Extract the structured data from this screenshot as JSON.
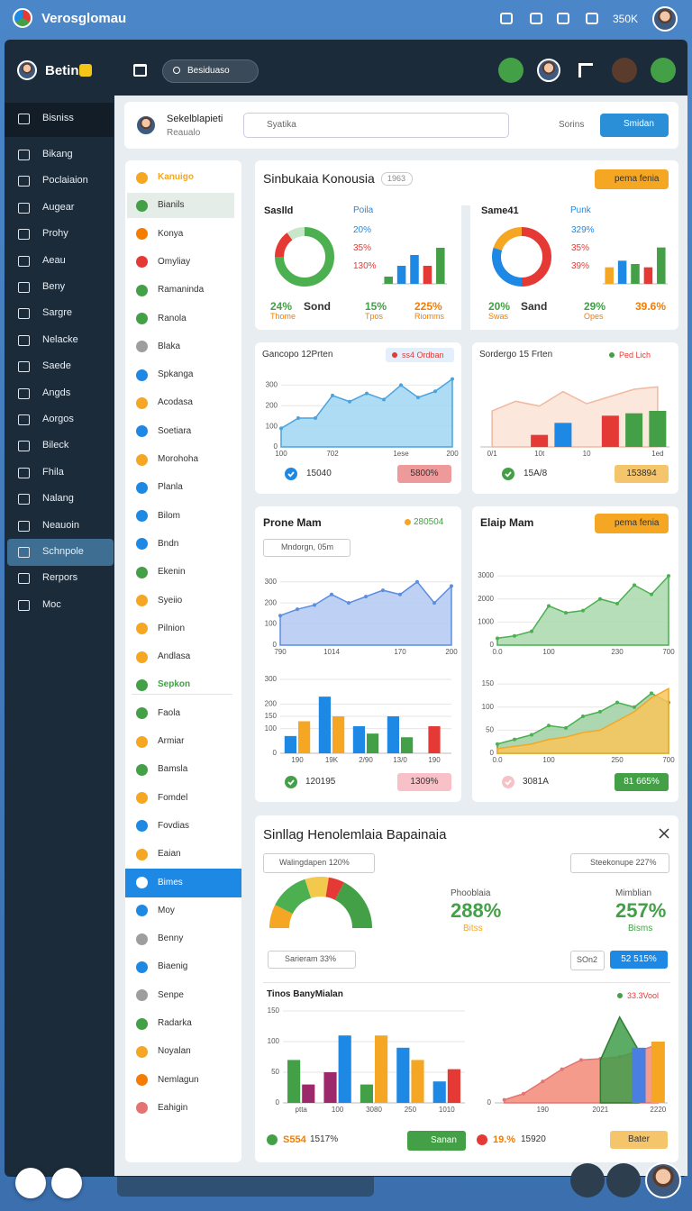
{
  "topbar": {
    "title": "Verosglomau",
    "count": "350K"
  },
  "brand": "Betin",
  "search": "Besiduaso",
  "sidebar": [
    {
      "label": "Bisniss",
      "state": "highlight"
    },
    {
      "label": "Bikang"
    },
    {
      "label": "Poclaiaion"
    },
    {
      "label": "Augear"
    },
    {
      "label": "Prohy"
    },
    {
      "label": "Aeau"
    },
    {
      "label": "Beny"
    },
    {
      "label": "Sargre"
    },
    {
      "label": "Nelacke"
    },
    {
      "label": "Saede"
    },
    {
      "label": "Angds"
    },
    {
      "label": "Aorgos"
    },
    {
      "label": "Bileck"
    },
    {
      "label": "Fhila"
    },
    {
      "label": "Nalang"
    },
    {
      "label": "Neauoin"
    },
    {
      "label": "Schnpole",
      "state": "selected"
    },
    {
      "label": "Rerpors"
    },
    {
      "label": "Moc"
    }
  ],
  "header": {
    "name": "Sekelblapieti",
    "role": "Reaualo",
    "select": "Syatika",
    "link": "Sorins",
    "button": "Smidan"
  },
  "list": [
    {
      "label": "Kanuigo",
      "color": "#f5a623",
      "state": "heading"
    },
    {
      "label": "Bianils",
      "color": "#43a047",
      "state": "highlight"
    },
    {
      "label": "Konya",
      "color": "#f57c00"
    },
    {
      "label": "Omyliay",
      "color": "#e53935"
    },
    {
      "label": "Ramaninda",
      "color": "#43a047"
    },
    {
      "label": "Ranola",
      "color": "#43a047"
    },
    {
      "label": "Blaka",
      "color": "#9e9e9e"
    },
    {
      "label": "Spkanga",
      "color": "#1e88e5"
    },
    {
      "label": "Acodasa",
      "color": "#f5a623"
    },
    {
      "label": "Soetiara",
      "color": "#1e88e5"
    },
    {
      "label": "Morohoha",
      "color": "#f5a623"
    },
    {
      "label": "Planla",
      "color": "#1e88e5"
    },
    {
      "label": "Bilom",
      "color": "#1e88e5"
    },
    {
      "label": "Bndn",
      "color": "#1e88e5"
    },
    {
      "label": "Ekenin",
      "color": "#43a047"
    },
    {
      "label": "Syeiio",
      "color": "#f5a623"
    },
    {
      "label": "Pilnion",
      "color": "#f5a623"
    },
    {
      "label": "Andlasa",
      "color": "#f5a623"
    },
    {
      "label": "Sepkon",
      "color": "#43a047",
      "state": "heading"
    },
    {
      "label": "Faola",
      "color": "#43a047"
    },
    {
      "label": "Armiar",
      "color": "#f5a623"
    },
    {
      "label": "Bamsla",
      "color": "#43a047"
    },
    {
      "label": "Fomdel",
      "color": "#f5a623"
    },
    {
      "label": "Fovdias",
      "color": "#1e88e5"
    },
    {
      "label": "Eaian",
      "color": "#f5a623"
    },
    {
      "label": "Bimes",
      "color": "#ffffff",
      "state": "selected"
    },
    {
      "label": "Moy",
      "color": "#1e88e5"
    },
    {
      "label": "Benny",
      "color": "#9e9e9e"
    },
    {
      "label": "Biaenig",
      "color": "#1e88e5"
    },
    {
      "label": "Senpe",
      "color": "#9e9e9e"
    },
    {
      "label": "Radarka",
      "color": "#43a047"
    },
    {
      "label": "Noyalan",
      "color": "#f5a623"
    },
    {
      "label": "Nemlagun",
      "color": "#f57c00"
    },
    {
      "label": "Eahigin",
      "color": "#e57373"
    }
  ],
  "summary": {
    "title": "Sinbukaia Konousia",
    "badge": "1963",
    "button": "pema fenia",
    "panels": [
      {
        "label": "Saslld",
        "legend": "Poila",
        "stats": [
          "20%",
          "35%",
          "130%"
        ],
        "donut": {
          "type": "donut",
          "values": [
            75,
            15,
            10
          ],
          "colors": [
            "#4caf50",
            "#e53935",
            "#c8e6c9"
          ]
        },
        "bars": {
          "type": "bar",
          "ylim": [
            0,
            55
          ],
          "series": [
            {
              "values": [
                10,
                25,
                40,
                25,
                50
              ],
              "colors": [
                "#43a047",
                "#1e88e5",
                "#1e88e5",
                "#e53935",
                "#43a047"
              ]
            }
          ]
        },
        "footer": [
          [
            "24%",
            "Thome"
          ],
          [
            "Sond"
          ],
          [
            "15%",
            "Tpos"
          ],
          [
            "225%",
            "Riomms"
          ]
        ]
      },
      {
        "label": "Same41",
        "legend": "Punk",
        "stats": [
          "329%",
          "35%",
          "39%"
        ],
        "donut": {
          "type": "donut",
          "values": [
            50,
            30,
            20
          ],
          "colors": [
            "#e53935",
            "#1e88e5",
            "#f5a623"
          ]
        },
        "bars": {
          "type": "bar",
          "ylim": [
            0,
            60
          ],
          "series": [
            {
              "values": [
                25,
                35,
                30,
                25,
                55
              ],
              "colors": [
                "#f5a623",
                "#1e88e5",
                "#43a047",
                "#e53935",
                "#43a047"
              ]
            }
          ]
        },
        "footer": [
          [
            "20%",
            "Swas"
          ],
          [
            "Sand"
          ],
          [
            "29%",
            "Opes"
          ],
          [
            "39.6%"
          ]
        ]
      }
    ]
  },
  "card_a": {
    "title": "Gancopo 12Prten",
    "legend": "ss4 Ordban",
    "footer": "15040",
    "pill": "5800%",
    "chart": {
      "type": "area",
      "ylim": [
        0,
        350
      ],
      "yticks": [
        0,
        100,
        200,
        300
      ],
      "categories": [
        "100",
        null,
        null,
        "702",
        null,
        null,
        null,
        "1ese",
        null,
        null,
        "200"
      ],
      "series": [
        {
          "kind": "area",
          "color": "#9fd6f2",
          "line": "#4aa3df",
          "dots": true,
          "values": [
            90,
            140,
            140,
            250,
            220,
            260,
            230,
            300,
            240,
            270,
            330
          ]
        }
      ]
    }
  },
  "card_b": {
    "title": "Sordergo 15 Frten",
    "legend": "Ped Lich",
    "footer": "15A/8",
    "pill": "153894",
    "chart": {
      "type": "combo",
      "ylim": [
        0,
        300
      ],
      "categories": [
        "0/1",
        null,
        "10t",
        null,
        "10",
        null,
        null,
        "1ed"
      ],
      "series": [
        {
          "kind": "area",
          "color": "#fbe3d6",
          "line": "#f0b9a0",
          "values": [
            150,
            190,
            170,
            230,
            180,
            210,
            240,
            250
          ]
        },
        {
          "kind": "bar",
          "color": "#e53935",
          "values": [
            null,
            null,
            50,
            null,
            null,
            130,
            null,
            null
          ]
        },
        {
          "kind": "bar",
          "color": "#1e88e5",
          "values": [
            null,
            null,
            null,
            100,
            null,
            null,
            null,
            null
          ]
        },
        {
          "kind": "bar",
          "color": "#43a047",
          "values": [
            null,
            null,
            null,
            null,
            null,
            null,
            140,
            150
          ]
        }
      ]
    }
  },
  "card_c": {
    "title": "Prone Mam",
    "badge": "280504",
    "search": "Mndorgn, 05m",
    "footer": "120195",
    "pill": "1309%",
    "chart_top": {
      "type": "area",
      "ylim": [
        0,
        350
      ],
      "yticks": [
        0,
        100,
        200,
        300
      ],
      "categories": [
        "790",
        null,
        null,
        "1014",
        null,
        null,
        null,
        "170",
        null,
        null,
        "200"
      ],
      "series": [
        {
          "kind": "area",
          "color": "#b3c9f2",
          "line": "#5b8de0",
          "dots": true,
          "values": [
            140,
            170,
            190,
            240,
            200,
            230,
            260,
            240,
            300,
            200,
            280
          ]
        }
      ]
    },
    "chart_bottom": {
      "type": "bar",
      "ylim": [
        0,
        300
      ],
      "yticks": [
        0,
        100,
        150,
        200,
        300
      ],
      "categories": [
        "190",
        "19K",
        "2/90",
        "13/0",
        "190"
      ],
      "series": [
        {
          "kind": "bar",
          "color": "#1e88e5",
          "values": [
            70,
            230,
            110,
            150,
            null
          ]
        },
        {
          "kind": "bar",
          "color": "#f5a623",
          "values": [
            130,
            150,
            null,
            null,
            null
          ]
        },
        {
          "kind": "bar",
          "color": "#43a047",
          "values": [
            null,
            null,
            80,
            65,
            null
          ]
        },
        {
          "kind": "bar",
          "color": "#e53935",
          "values": [
            null,
            null,
            null,
            null,
            110
          ]
        }
      ]
    }
  },
  "card_d": {
    "title": "Elaip Mam",
    "button": "pema fenia",
    "footer": "3081A",
    "pill": "81 665%",
    "chart_top": {
      "type": "area",
      "ylim": [
        0,
        3200
      ],
      "yticks": [
        0,
        1000,
        2000,
        3000
      ],
      "categories": [
        "0.0",
        null,
        null,
        "100",
        null,
        null,
        null,
        "230",
        null,
        null,
        "700"
      ],
      "series": [
        {
          "kind": "area",
          "color": "#a9d8ad",
          "line": "#4caf50",
          "dots": true,
          "values": [
            300,
            400,
            600,
            1700,
            1400,
            1500,
            2000,
            1800,
            2600,
            2200,
            3000
          ]
        }
      ]
    },
    "chart_bottom": {
      "type": "area",
      "ylim": [
        0,
        160
      ],
      "yticks": [
        0,
        50,
        100,
        150
      ],
      "categories": [
        "0.0",
        null,
        null,
        "100",
        null,
        null,
        null,
        "250",
        null,
        null,
        "700"
      ],
      "series": [
        {
          "kind": "area",
          "color": "#9fd0a3",
          "line": "#4caf50",
          "dots": true,
          "values": [
            20,
            30,
            40,
            60,
            55,
            80,
            90,
            110,
            100,
            130,
            110
          ]
        },
        {
          "kind": "area",
          "color": "#f9c55a",
          "line": "#f5a623",
          "values": [
            10,
            15,
            20,
            30,
            35,
            45,
            50,
            70,
            90,
            120,
            140
          ]
        }
      ]
    }
  },
  "report": {
    "title": "Sinllag Henolemlaia Bapainaia",
    "search_left": "Walingdapen 120%",
    "search_right": "Steekonupe 227%",
    "gauge": {
      "type": "half-donut",
      "values": [
        15,
        25,
        15,
        10,
        35
      ],
      "colors": [
        "#f5a623",
        "#4caf50",
        "#f2c94c",
        "#e53935",
        "#43a047"
      ]
    },
    "stats": [
      {
        "label": "Phooblaia",
        "value": "288%",
        "note": "Bitss"
      },
      {
        "label": "Mimblian",
        "value": "257%",
        "note": "Bisms"
      }
    ],
    "filter": "Sarieram 33%",
    "box": "SOn2",
    "button": "52 515%",
    "chart_title": "Tinos BanyMialan",
    "legend": "33.3Vool",
    "chart_left": {
      "type": "bar",
      "ylim": [
        0,
        150
      ],
      "yticks": [
        0,
        50,
        100,
        150
      ],
      "categories": [
        "ptta",
        "100",
        "3080",
        "250",
        "1010"
      ],
      "series": [
        {
          "kind": "bar",
          "color": "#43a047",
          "values": [
            70,
            null,
            30,
            null,
            null
          ]
        },
        {
          "kind": "bar",
          "color": "#9c2a6b",
          "values": [
            30,
            50,
            null,
            null,
            null
          ]
        },
        {
          "kind": "bar",
          "color": "#1e88e5",
          "values": [
            null,
            110,
            null,
            90,
            35
          ]
        },
        {
          "kind": "bar",
          "color": "#f5a623",
          "values": [
            null,
            null,
            110,
            70,
            null
          ]
        },
        {
          "kind": "bar",
          "color": "#e53935",
          "values": [
            null,
            null,
            null,
            null,
            55
          ]
        }
      ]
    },
    "chart_right": {
      "type": "combo",
      "ylim": [
        0,
        150
      ],
      "yticks": [
        0
      ],
      "categories": [
        null,
        null,
        "190",
        null,
        null,
        "2021",
        null,
        null,
        "2220"
      ],
      "series": [
        {
          "kind": "area",
          "color": "#f28a78",
          "line": "#e57373",
          "dots": true,
          "values": [
            5,
            15,
            35,
            55,
            70,
            72,
            75,
            85,
            95
          ]
        },
        {
          "kind": "area",
          "color": "#3f9d4a",
          "line": "#2e7d32",
          "values": [
            null,
            null,
            null,
            null,
            null,
            70,
            140,
            85,
            null
          ]
        },
        {
          "kind": "bar",
          "color": "#4a7ee0",
          "values": [
            null,
            null,
            null,
            null,
            null,
            null,
            null,
            90,
            null
          ]
        },
        {
          "kind": "bar",
          "color": "#f5a623",
          "values": [
            null,
            null,
            null,
            null,
            null,
            null,
            null,
            null,
            100
          ]
        }
      ]
    },
    "footer": {
      "left_value": "S554",
      "left_text": "1517%",
      "pill": "Sanan",
      "mid_value": "19.%",
      "mid_text": "15920",
      "button": "Bater"
    }
  }
}
